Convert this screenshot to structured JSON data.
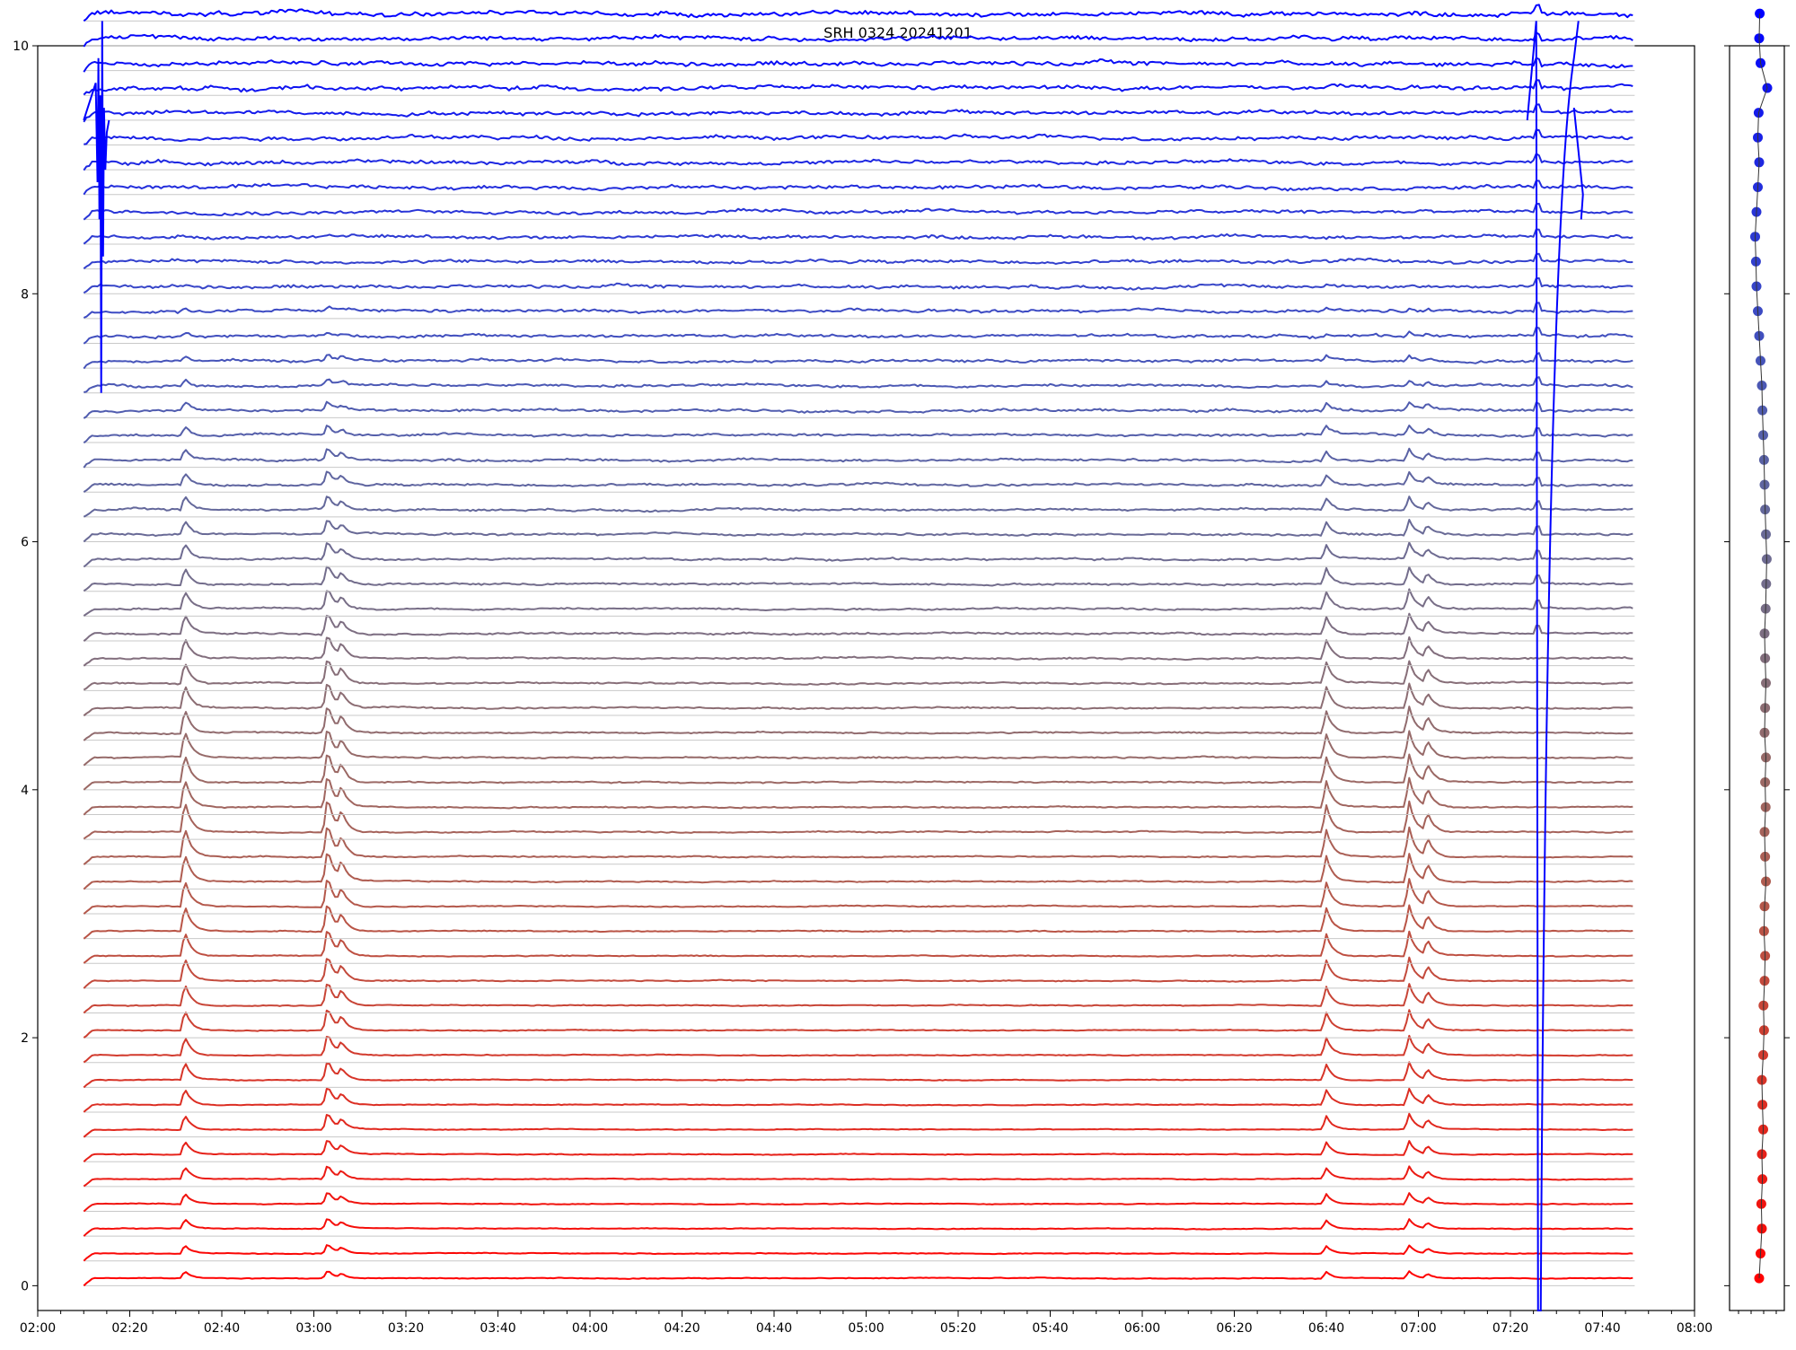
{
  "chart_data": [
    {
      "type": "line",
      "title": "SRH 0324 20241201",
      "xlabel": "",
      "ylabel": "",
      "x_ticks": [
        "02:00",
        "02:20",
        "02:40",
        "03:00",
        "03:20",
        "03:40",
        "04:00",
        "04:20",
        "04:40",
        "05:00",
        "05:20",
        "05:40",
        "06:00",
        "06:20",
        "06:40",
        "07:00",
        "07:20",
        "07:40",
        "08:00"
      ],
      "y_ticks": [
        "0",
        "2",
        "4",
        "6",
        "8",
        "10"
      ],
      "xlim": [
        "02:00",
        "08:00"
      ],
      "ylim": [
        -0.2,
        10
      ],
      "grid": false,
      "legend": "none",
      "series_count": 52,
      "series_spacing": 0.2,
      "series_start_time": "02:10",
      "series_end_time": "07:47",
      "gap_time": "07:26",
      "burst_events": [
        {
          "time": "02:32",
          "peak": 0.25
        },
        {
          "time": "03:03",
          "peak": 0.3
        },
        {
          "time": "03:06",
          "peak": 0.15
        },
        {
          "time": "06:40",
          "peak": 0.22
        },
        {
          "time": "06:58",
          "peak": 0.25
        },
        {
          "time": "07:02",
          "peak": 0.15
        }
      ],
      "color_scale": [
        "#ff0000",
        "#0000ff"
      ]
    },
    {
      "type": "scatter",
      "title": "",
      "xlabel": "",
      "ylabel": "",
      "ylim": [
        -0.2,
        10
      ],
      "x_offsets": [
        0.0,
        0.05,
        0.1,
        0.08,
        0.12,
        0.1,
        0.15,
        0.12,
        0.1,
        0.15,
        0.18,
        0.16,
        0.2,
        0.22,
        0.18,
        0.2,
        0.25,
        0.22,
        0.2,
        0.24,
        0.22,
        0.25,
        0.2,
        0.22,
        0.25,
        0.22,
        0.2,
        0.24,
        0.26,
        0.28,
        0.25,
        0.22,
        0.2,
        0.18,
        0.15,
        0.12,
        0.1,
        0.05,
        0.0,
        -0.05,
        -0.1,
        -0.12,
        -0.15,
        -0.1,
        -0.05,
        0.0,
        -0.05,
        -0.02,
        0.3,
        0.05,
        0.0,
        0.02
      ],
      "y_values": "series offsets 0.0 – 10.2",
      "color_scale": [
        "#ff0000",
        "#0000ff"
      ]
    }
  ]
}
